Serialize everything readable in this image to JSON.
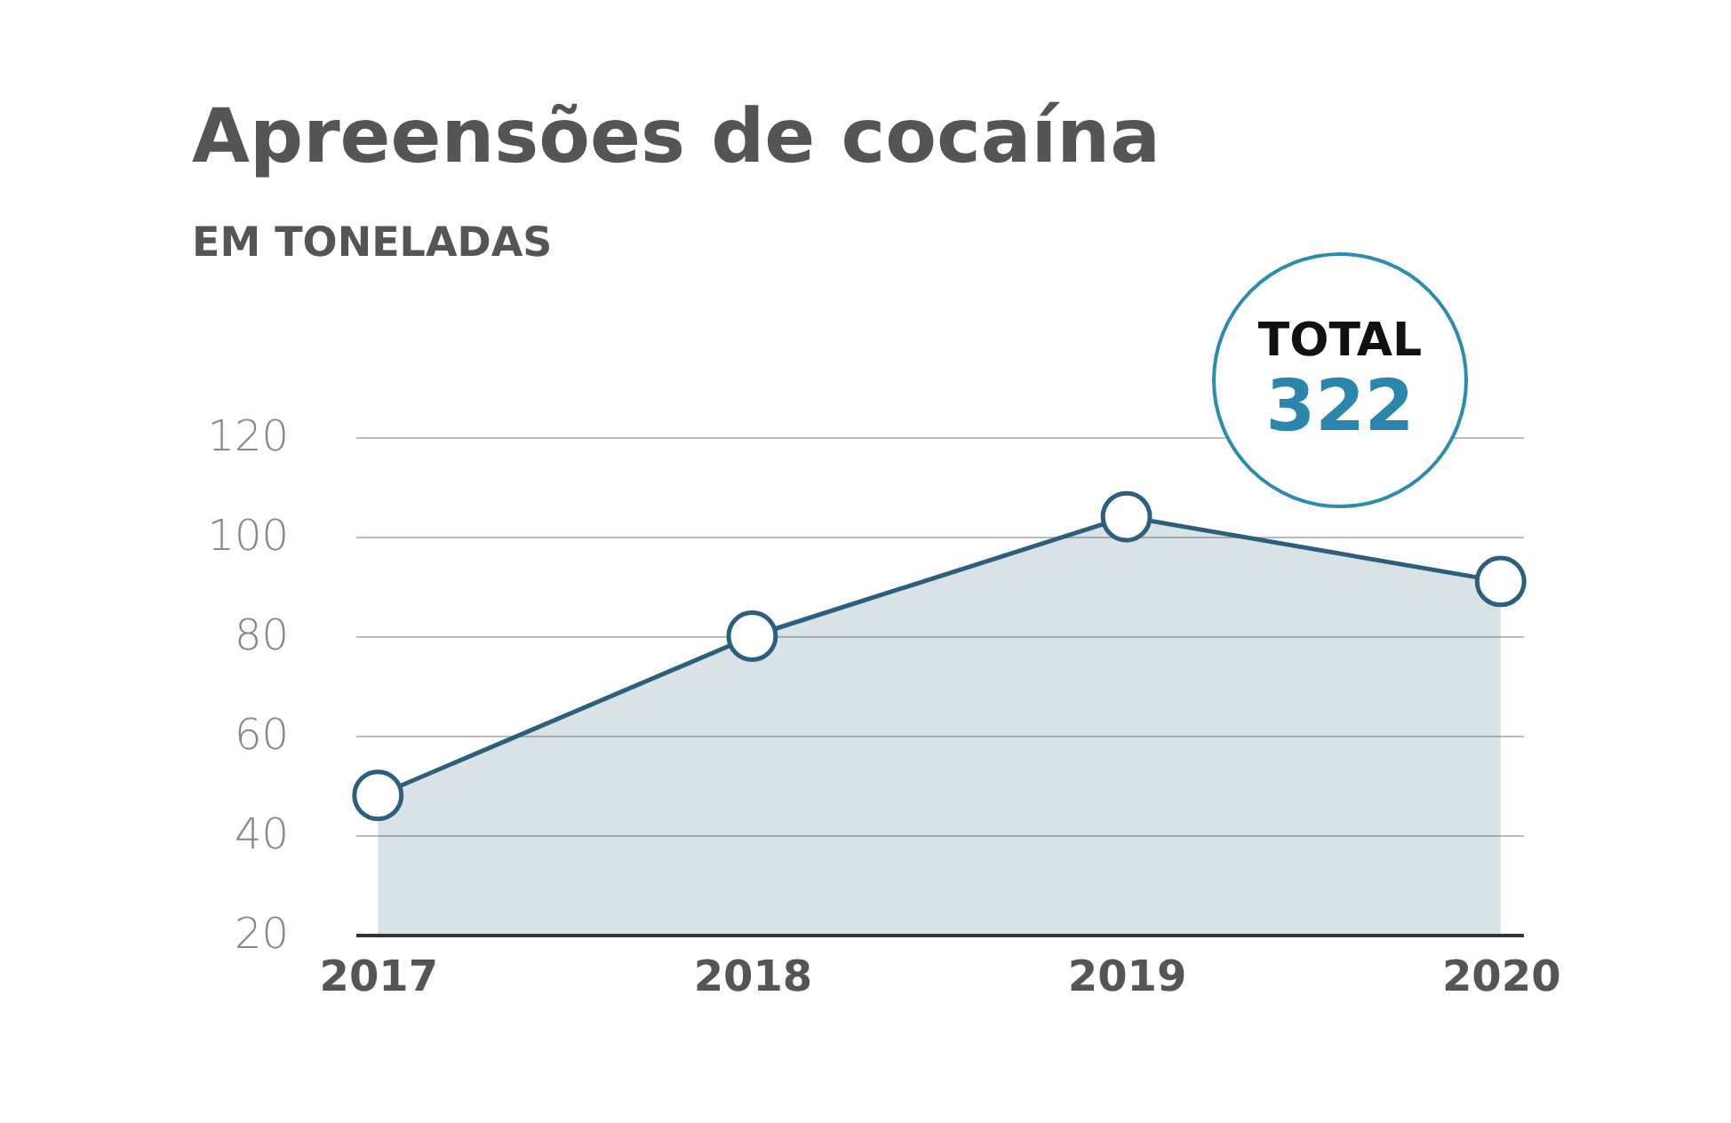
{
  "chart_data": {
    "type": "area",
    "title": "Apreensões de cocaína",
    "subtitle": "EM TONELADAS",
    "categories": [
      "2017",
      "2018",
      "2019",
      "2020"
    ],
    "series": [
      {
        "color": "#2b5f7c",
        "values": [
          48,
          80,
          104,
          91
        ]
      }
    ],
    "ylim": [
      20,
      120
    ],
    "yticks": [
      20,
      40,
      60,
      80,
      100,
      120
    ],
    "grid": "y",
    "marker": "circle",
    "annotations": [
      "TOTAL",
      "322"
    ]
  }
}
